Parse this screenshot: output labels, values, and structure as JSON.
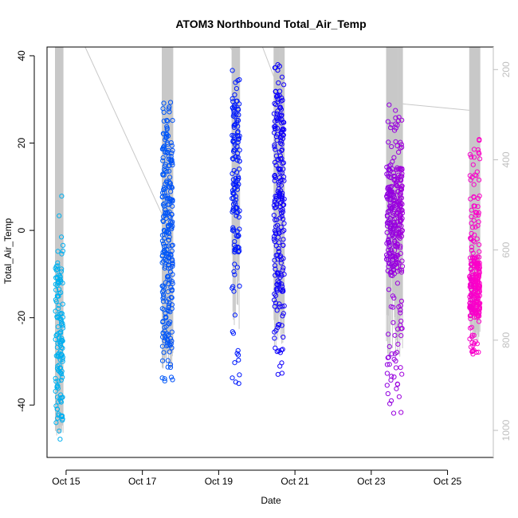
{
  "chart_data": {
    "type": "scatter",
    "title": "ATOM3 Northbound Total_Air_Temp",
    "xlabel": "Date",
    "ylabel": "Total_Air_Temp",
    "xlim": [
      14.5,
      26.2
    ],
    "ylim": [
      -52,
      42
    ],
    "x_ticks": [
      {
        "value": 15,
        "label": "Oct 15"
      },
      {
        "value": 17,
        "label": "Oct 17"
      },
      {
        "value": 19,
        "label": "Oct 19"
      },
      {
        "value": 21,
        "label": "Oct 21"
      },
      {
        "value": 23,
        "label": "Oct 23"
      },
      {
        "value": 25,
        "label": "Oct 25"
      }
    ],
    "y_ticks": [
      {
        "value": -40,
        "label": "-40"
      },
      {
        "value": -20,
        "label": "-20"
      },
      {
        "value": 0,
        "label": "0"
      },
      {
        "value": 20,
        "label": "20"
      },
      {
        "value": 40,
        "label": "40"
      }
    ],
    "secondary_axis": {
      "label_color": "#bfbfbf",
      "range": [
        1060,
        150
      ],
      "ticks": [
        {
          "value": 200,
          "label": "200"
        },
        {
          "value": 400,
          "label": "400"
        },
        {
          "value": 600,
          "label": "600"
        },
        {
          "value": 800,
          "label": "800"
        },
        {
          "value": 1000,
          "label": "1000"
        }
      ]
    },
    "profile_line_color": "#c8c8c8",
    "color_start": "#00b4f0",
    "color_mid": "#0000ff",
    "color_end": "#ff00c8",
    "flights": [
      {
        "x_start": 14.72,
        "x_end": 14.92,
        "temp_min": -49,
        "temp_max": 8,
        "n": 140,
        "cluster_low": -44,
        "cluster_high": -8
      },
      {
        "x_start": 17.52,
        "x_end": 17.8,
        "temp_min": -35,
        "temp_max": 32,
        "n": 260,
        "cluster_low": -27,
        "cluster_high": 24
      },
      {
        "x_start": 19.35,
        "x_end": 19.55,
        "temp_min": -36,
        "temp_max": 38,
        "n": 150,
        "cluster_low": -5,
        "cluster_high": 30
      },
      {
        "x_start": 20.45,
        "x_end": 20.72,
        "temp_min": -33,
        "temp_max": 38,
        "n": 230,
        "cluster_low": -18,
        "cluster_high": 32
      },
      {
        "x_start": 23.4,
        "x_end": 23.82,
        "temp_min": -42,
        "temp_max": 29,
        "n": 330,
        "cluster_low": -10,
        "cluster_high": 15
      },
      {
        "x_start": 25.58,
        "x_end": 25.85,
        "temp_min": -29,
        "temp_max": 21,
        "n": 260,
        "cluster_low": -20,
        "cluster_high": -6
      }
    ],
    "connector_lines": [
      {
        "x": [
          15.5,
          17.55
        ],
        "y": [
          42,
          3
        ]
      },
      {
        "x": [
          19.3,
          19.45
        ],
        "y": [
          42,
          40
        ]
      },
      {
        "x": [
          20.15,
          20.5
        ],
        "y": [
          42,
          34
        ]
      },
      {
        "x": [
          23.8,
          25.6
        ],
        "y": [
          29,
          27.5
        ]
      }
    ]
  }
}
